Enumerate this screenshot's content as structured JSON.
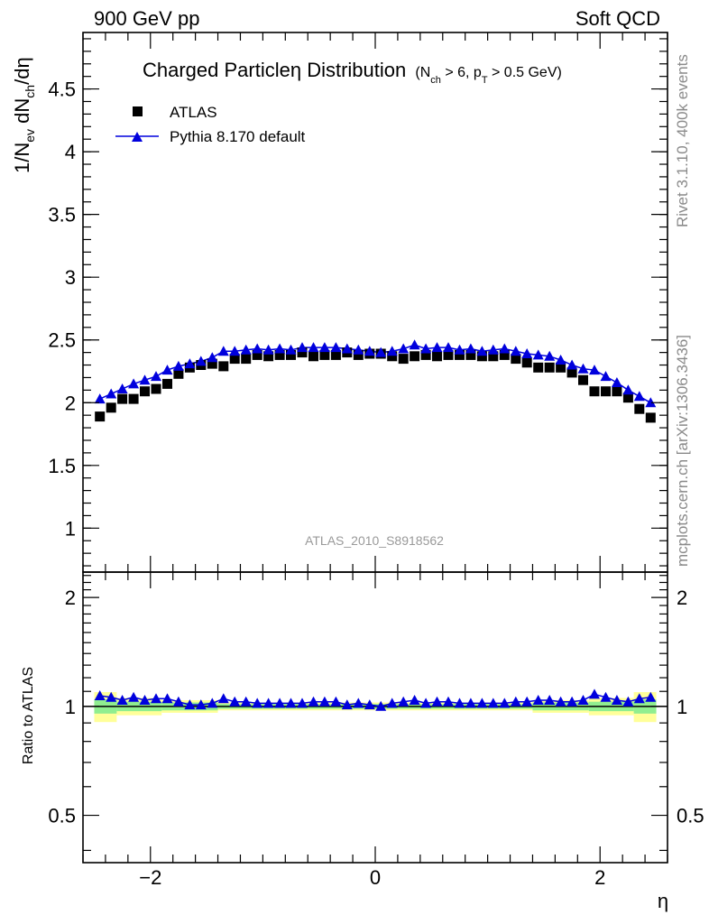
{
  "chart_data": {
    "type": "scatter",
    "header_left": "900 GeV pp",
    "header_right": "Soft QCD",
    "title": "Charged Particleη Distribution",
    "title_sub": "(N₍ch₎ > 6, p₍T₎ > 0.5 GeV)",
    "title_sub_parts": {
      "n": "N",
      "n_sub": "ch",
      "mid": " > 6, p",
      "p_sub": "T",
      "tail": " > 0.5 GeV)"
    },
    "ylabel_main": "1/Nₑᵥ dNᶜʰ/dη",
    "ylabel_parts": {
      "a": "1/N",
      "a_sub": "ev",
      "b": " dN",
      "b_sub": "ch",
      "c": "/dη"
    },
    "ylabel_ratio": "Ratio to ATLAS",
    "xlabel": "η",
    "watermark": "ATLAS_2010_S8918562",
    "side_text_top": "Rivet 3.1.10,  400k events",
    "side_text_bottom": "mcplots.cern.ch [arXiv:1306.3436]",
    "xlim": [
      -2.6,
      2.6
    ],
    "ylim_main": [
      0.65,
      4.95
    ],
    "ylim_ratio": [
      0.37,
      2.35
    ],
    "x_ticks": [
      -2,
      0,
      2
    ],
    "x_tick_labels": [
      "−2",
      "0",
      "2"
    ],
    "y_ticks_main": [
      1,
      1.5,
      2,
      2.5,
      3,
      3.5,
      4,
      4.5
    ],
    "y_tick_labels_main": [
      "1",
      "1.5",
      "2",
      "2.5",
      "3",
      "3.5",
      "4",
      "4.5"
    ],
    "y_ticks_ratio": [
      0.5,
      1,
      2
    ],
    "y_tick_labels_ratio": [
      "0.5",
      "1",
      "2"
    ],
    "x": [
      -2.45,
      -2.35,
      -2.25,
      -2.15,
      -2.05,
      -1.95,
      -1.85,
      -1.75,
      -1.65,
      -1.55,
      -1.45,
      -1.35,
      -1.25,
      -1.15,
      -1.05,
      -0.95,
      -0.85,
      -0.75,
      -0.65,
      -0.55,
      -0.45,
      -0.35,
      -0.25,
      -0.15,
      -0.05,
      0.05,
      0.15,
      0.25,
      0.35,
      0.45,
      0.55,
      0.65,
      0.75,
      0.85,
      0.95,
      1.05,
      1.15,
      1.25,
      1.35,
      1.45,
      1.55,
      1.65,
      1.75,
      1.85,
      1.95,
      2.05,
      2.15,
      2.25,
      2.35,
      2.45
    ],
    "series": [
      {
        "name": "ATLAS",
        "marker": "square",
        "color": "#000000",
        "values": [
          1.89,
          1.96,
          2.03,
          2.03,
          2.09,
          2.11,
          2.15,
          2.23,
          2.28,
          2.3,
          2.31,
          2.29,
          2.35,
          2.35,
          2.38,
          2.37,
          2.38,
          2.38,
          2.4,
          2.37,
          2.38,
          2.38,
          2.4,
          2.38,
          2.39,
          2.39,
          2.37,
          2.35,
          2.37,
          2.38,
          2.37,
          2.38,
          2.38,
          2.38,
          2.37,
          2.37,
          2.38,
          2.35,
          2.32,
          2.28,
          2.28,
          2.28,
          2.24,
          2.18,
          2.09,
          2.09,
          2.09,
          2.04,
          1.95,
          1.88
        ]
      },
      {
        "name": "Pythia 8.170 default",
        "marker": "triangle",
        "color": "#0000dd",
        "values": [
          2.03,
          2.07,
          2.11,
          2.15,
          2.18,
          2.21,
          2.26,
          2.29,
          2.31,
          2.33,
          2.36,
          2.41,
          2.41,
          2.42,
          2.43,
          2.42,
          2.43,
          2.42,
          2.44,
          2.44,
          2.44,
          2.44,
          2.43,
          2.42,
          2.41,
          2.4,
          2.41,
          2.43,
          2.46,
          2.43,
          2.44,
          2.44,
          2.42,
          2.43,
          2.41,
          2.42,
          2.43,
          2.41,
          2.39,
          2.38,
          2.37,
          2.34,
          2.3,
          2.27,
          2.26,
          2.21,
          2.16,
          2.1,
          2.05,
          2.0
        ]
      }
    ],
    "ratio_values": [
      1.07,
      1.06,
      1.04,
      1.06,
      1.04,
      1.05,
      1.05,
      1.03,
      1.01,
      1.01,
      1.02,
      1.05,
      1.03,
      1.03,
      1.02,
      1.02,
      1.02,
      1.02,
      1.02,
      1.03,
      1.03,
      1.03,
      1.01,
      1.02,
      1.01,
      1.0,
      1.02,
      1.03,
      1.04,
      1.02,
      1.03,
      1.03,
      1.02,
      1.02,
      1.02,
      1.02,
      1.02,
      1.03,
      1.03,
      1.04,
      1.04,
      1.03,
      1.03,
      1.04,
      1.08,
      1.06,
      1.04,
      1.03,
      1.05,
      1.06
    ],
    "uncertainty_bands": [
      {
        "x0": -2.5,
        "x1": -2.3,
        "inner": [
          0.955,
          1.045
        ],
        "outer": [
          0.905,
          1.095
        ]
      },
      {
        "x0": -2.3,
        "x1": -1.9,
        "inner": [
          0.97,
          1.03
        ],
        "outer": [
          0.945,
          1.055
        ]
      },
      {
        "x0": -1.9,
        "x1": -1.4,
        "inner": [
          0.975,
          1.025
        ],
        "outer": [
          0.96,
          1.04
        ]
      },
      {
        "x0": -1.4,
        "x1": 1.4,
        "inner": [
          0.985,
          1.015
        ],
        "outer": [
          0.975,
          1.025
        ]
      },
      {
        "x0": 1.4,
        "x1": 1.9,
        "inner": [
          0.975,
          1.025
        ],
        "outer": [
          0.96,
          1.04
        ]
      },
      {
        "x0": 1.9,
        "x1": 2.3,
        "inner": [
          0.97,
          1.03
        ],
        "outer": [
          0.945,
          1.055
        ]
      },
      {
        "x0": 2.3,
        "x1": 2.5,
        "inner": [
          0.955,
          1.045
        ],
        "outer": [
          0.905,
          1.095
        ]
      }
    ],
    "colors": {
      "data": "#000000",
      "mc": "#0000dd",
      "band_inner": "#90ee90",
      "band_outer": "#ffff99",
      "watermark": "#999999",
      "side": "#8a8a8a"
    }
  }
}
